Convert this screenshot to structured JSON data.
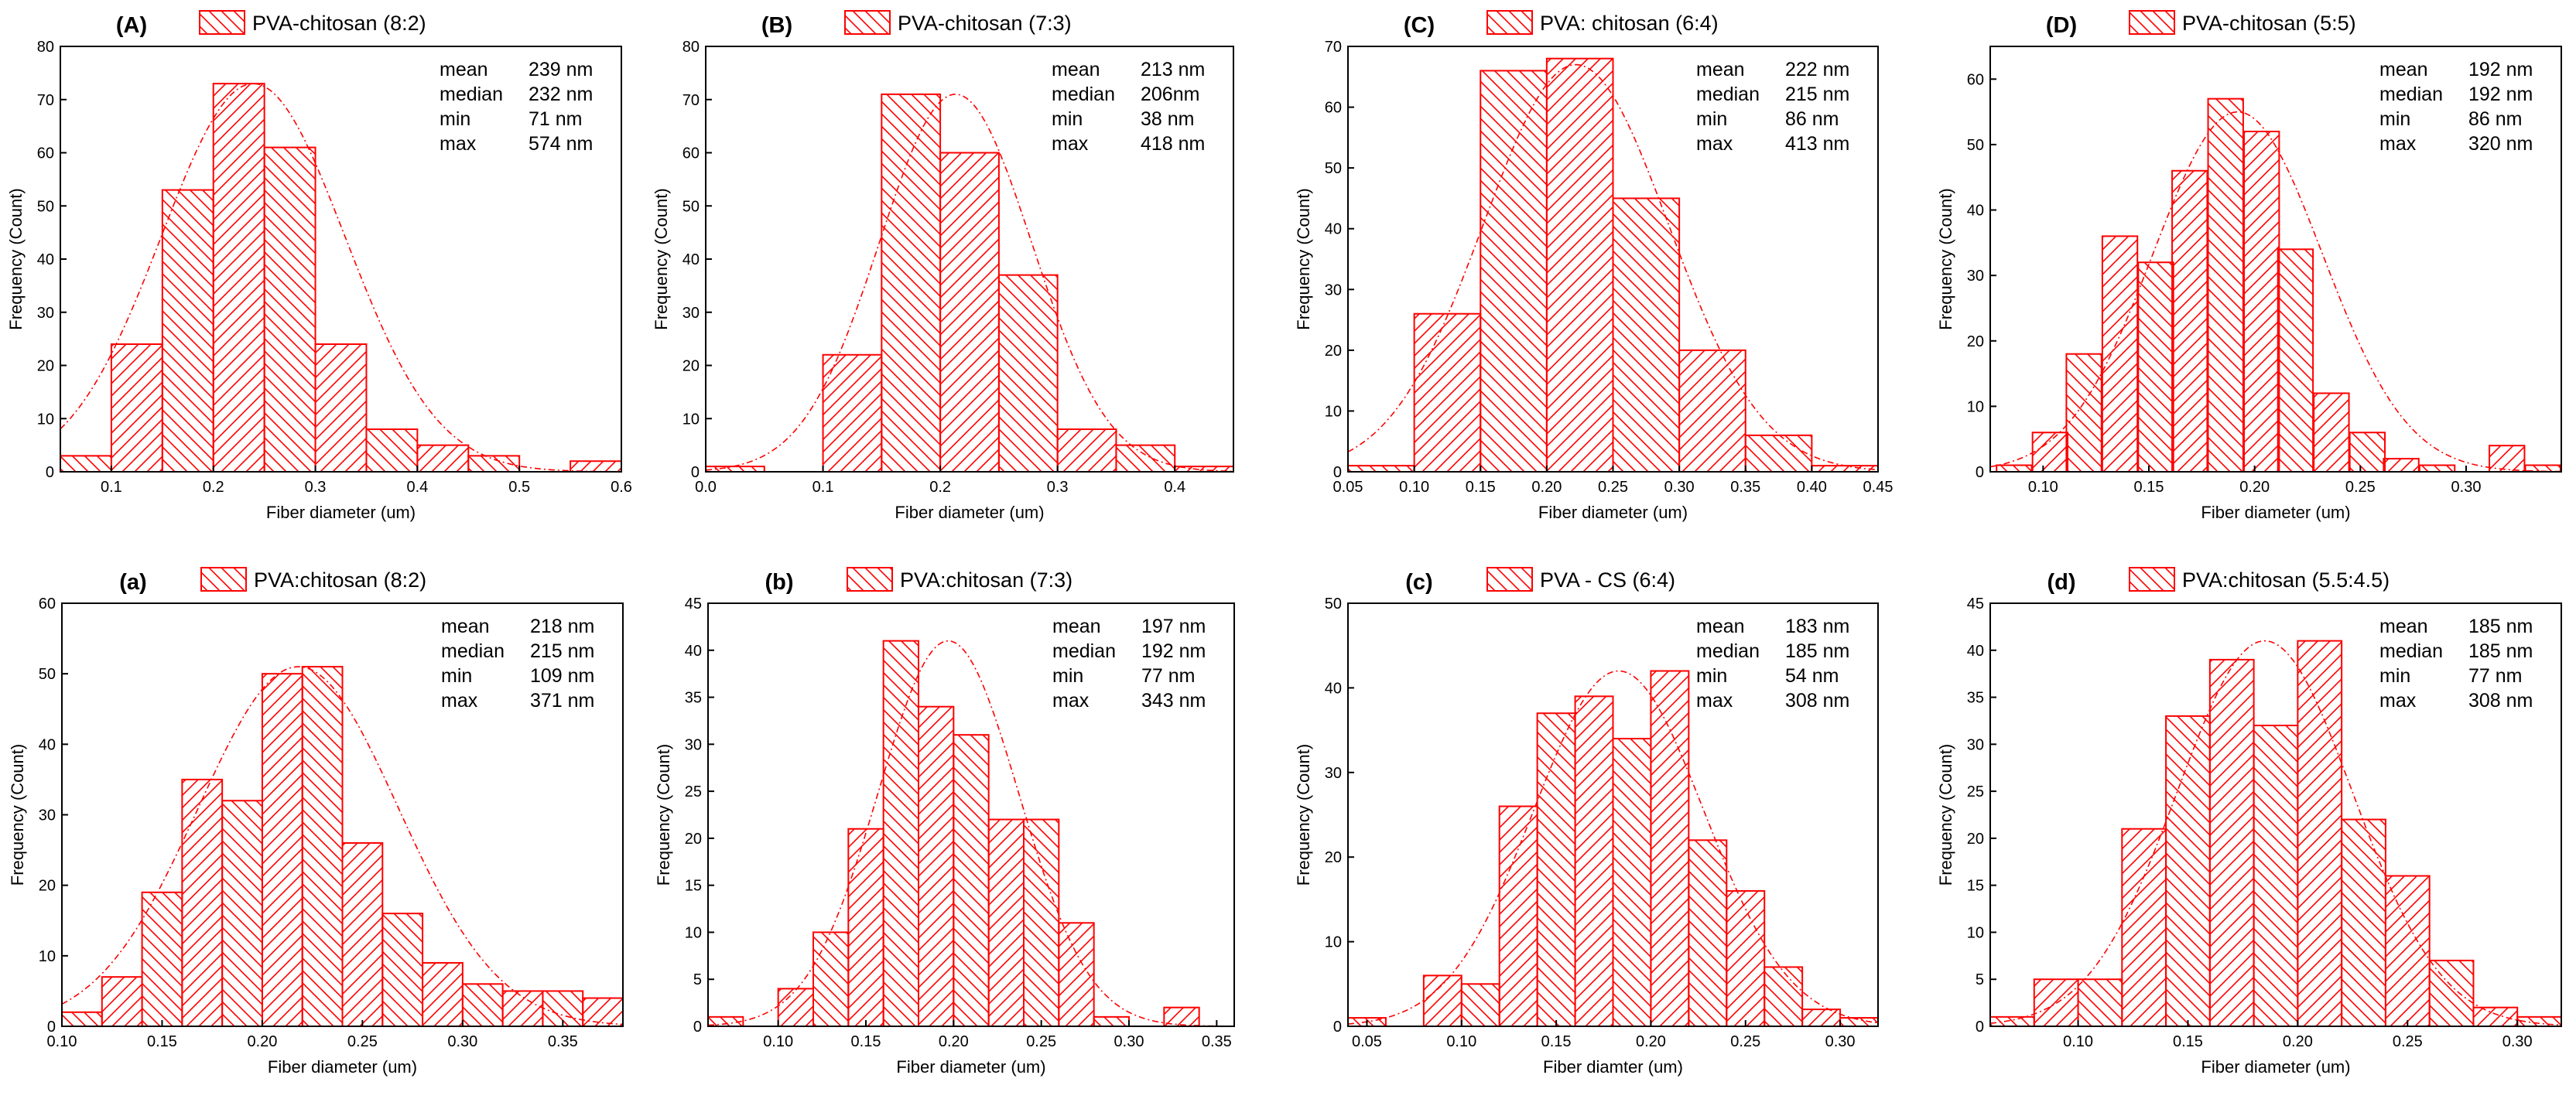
{
  "style": {
    "bar_color": "#ff0000"
  },
  "chart_data": [
    {
      "type": "bar",
      "panel_label": "(A)",
      "legend": "PVA-chitosan (8:2)",
      "xlabel": "Fiber diameter (um)",
      "ylabel": "Frequency (Count)",
      "xlim": [
        0.05,
        0.6
      ],
      "ylim": [
        0,
        80
      ],
      "xticks": [
        0.1,
        0.2,
        0.3,
        0.4,
        0.5,
        0.6
      ],
      "yticks": [
        0,
        10,
        20,
        30,
        40,
        50,
        60,
        70,
        80
      ],
      "bin_width": 0.05,
      "bin_starts": [
        0.05,
        0.1,
        0.15,
        0.2,
        0.25,
        0.3,
        0.35,
        0.4,
        0.45,
        0.55
      ],
      "values": [
        3,
        24,
        53,
        73,
        61,
        24,
        8,
        5,
        3,
        2
      ],
      "fit": {
        "mean": 0.239,
        "sd": 0.09,
        "peak": 73
      },
      "stats": [
        {
          "label": "mean",
          "value": "239 nm"
        },
        {
          "label": "median",
          "value": "232 nm"
        },
        {
          "label": "min",
          "value": "71  nm"
        },
        {
          "label": "max",
          "value": "574 nm"
        }
      ]
    },
    {
      "type": "bar",
      "panel_label": "(B)",
      "legend": "PVA-chitosan (7:3)",
      "xlabel": "Fiber diameter (um)",
      "ylabel": "Frequency (Count)",
      "xlim": [
        0.0,
        0.45
      ],
      "ylim": [
        0,
        80
      ],
      "xticks": [
        0.0,
        0.1,
        0.2,
        0.3,
        0.4
      ],
      "yticks": [
        0,
        10,
        20,
        30,
        40,
        50,
        60,
        70,
        80
      ],
      "bin_width": 0.05,
      "bin_starts": [
        0.0,
        0.1,
        0.15,
        0.2,
        0.25,
        0.3,
        0.35,
        0.4
      ],
      "values": [
        1,
        22,
        71,
        60,
        37,
        8,
        5,
        1
      ],
      "fit": {
        "mean": 0.213,
        "sd": 0.065,
        "peak": 71
      },
      "stats": [
        {
          "label": "mean",
          "value": "213 nm"
        },
        {
          "label": "median",
          "value": "206nm"
        },
        {
          "label": "min",
          "value": "38  nm"
        },
        {
          "label": "max",
          "value": "418 nm"
        }
      ]
    },
    {
      "type": "bar",
      "panel_label": "(C)",
      "legend": "PVA: chitosan (6:4)",
      "xlabel": "Fiber diameter (um)",
      "ylabel": "Frequency (Count)",
      "xlim": [
        0.05,
        0.45
      ],
      "ylim": [
        0,
        70
      ],
      "xticks": [
        0.05,
        0.1,
        0.15,
        0.2,
        0.25,
        0.3,
        0.35,
        0.4,
        0.45
      ],
      "yticks": [
        0,
        10,
        20,
        30,
        40,
        50,
        60,
        70
      ],
      "bin_width": 0.05,
      "bin_starts": [
        0.05,
        0.1,
        0.15,
        0.2,
        0.25,
        0.3,
        0.35,
        0.4
      ],
      "values": [
        1,
        26,
        66,
        68,
        45,
        20,
        6,
        1
      ],
      "fit": {
        "mean": 0.222,
        "sd": 0.07,
        "peak": 67
      },
      "stats": [
        {
          "label": "mean",
          "value": "222 nm"
        },
        {
          "label": "median",
          "value": "215 nm"
        },
        {
          "label": "min",
          "value": "86  nm"
        },
        {
          "label": "max",
          "value": "413 nm"
        }
      ]
    },
    {
      "type": "bar",
      "panel_label": "(D)",
      "legend": "PVA-chitosan (5:5)",
      "xlabel": "Fiber diameter (um)",
      "ylabel": "Frequency (Count)",
      "xlim": [
        0.075,
        0.345
      ],
      "ylim": [
        0,
        65
      ],
      "xticks": [
        0.1,
        0.15,
        0.2,
        0.25,
        0.3
      ],
      "yticks": [
        0,
        10,
        20,
        30,
        40,
        50,
        60
      ],
      "bin_width": 0.0166,
      "bin_starts": [
        0.078,
        0.095,
        0.111,
        0.128,
        0.145,
        0.161,
        0.178,
        0.195,
        0.211,
        0.228,
        0.245,
        0.261,
        0.278,
        0.311,
        0.328
      ],
      "values": [
        1,
        6,
        18,
        36,
        32,
        46,
        57,
        52,
        34,
        12,
        6,
        2,
        1,
        4,
        1
      ],
      "fit": {
        "mean": 0.192,
        "sd": 0.04,
        "peak": 55
      },
      "stats": [
        {
          "label": "mean",
          "value": "192 nm"
        },
        {
          "label": "median",
          "value": "192 nm"
        },
        {
          "label": "min",
          "value": "86  nm"
        },
        {
          "label": "max",
          "value": "320 nm"
        }
      ]
    },
    {
      "type": "bar",
      "panel_label": "(a)",
      "legend": "PVA:chitosan (8:2)",
      "xlabel": "Fiber diameter (um)",
      "ylabel": "Frequency (Count)",
      "xlim": [
        0.1,
        0.38
      ],
      "ylim": [
        0,
        60
      ],
      "xticks": [
        0.1,
        0.15,
        0.2,
        0.25,
        0.3,
        0.35
      ],
      "yticks": [
        0,
        10,
        20,
        30,
        40,
        50,
        60
      ],
      "bin_width": 0.02,
      "bin_starts": [
        0.1,
        0.12,
        0.14,
        0.16,
        0.18,
        0.2,
        0.22,
        0.24,
        0.26,
        0.28,
        0.3,
        0.32,
        0.34,
        0.36
      ],
      "values": [
        2,
        7,
        19,
        35,
        32,
        50,
        51,
        26,
        16,
        9,
        6,
        5,
        5,
        4
      ],
      "fit": {
        "mean": 0.218,
        "sd": 0.05,
        "peak": 51
      },
      "stats": [
        {
          "label": "mean",
          "value": "218 nm"
        },
        {
          "label": "median",
          "value": "215 nm"
        },
        {
          "label": "min",
          "value": "109 nm"
        },
        {
          "label": "max",
          "value": "371 nm"
        }
      ]
    },
    {
      "type": "bar",
      "panel_label": "(b)",
      "legend": "PVA:chitosan (7:3)",
      "xlabel": "Fiber diameter (um)",
      "ylabel": "Frequency (Count)",
      "xlim": [
        0.06,
        0.36
      ],
      "ylim": [
        0,
        45
      ],
      "xticks": [
        0.1,
        0.15,
        0.2,
        0.25,
        0.3,
        0.35
      ],
      "yticks": [
        0,
        5,
        10,
        15,
        20,
        25,
        30,
        35,
        40,
        45
      ],
      "bin_width": 0.02,
      "bin_starts": [
        0.06,
        0.1,
        0.12,
        0.14,
        0.16,
        0.18,
        0.2,
        0.22,
        0.24,
        0.26,
        0.28,
        0.32
      ],
      "values": [
        1,
        4,
        10,
        21,
        41,
        34,
        31,
        22,
        22,
        11,
        1,
        2
      ],
      "fit": {
        "mean": 0.197,
        "sd": 0.04,
        "peak": 41
      },
      "stats": [
        {
          "label": "mean",
          "value": "197 nm"
        },
        {
          "label": "median",
          "value": "192 nm"
        },
        {
          "label": "min",
          "value": "77 nm"
        },
        {
          "label": "max",
          "value": "343 nm"
        }
      ]
    },
    {
      "type": "bar",
      "panel_label": "(c)",
      "legend": "PVA - CS (6:4)",
      "xlabel": "Fiber diamter (um)",
      "ylabel": "Frequency (Count)",
      "xlim": [
        0.04,
        0.32
      ],
      "ylim": [
        0,
        50
      ],
      "xticks": [
        0.05,
        0.1,
        0.15,
        0.2,
        0.25,
        0.3
      ],
      "yticks": [
        0,
        10,
        20,
        30,
        40,
        50
      ],
      "bin_width": 0.02,
      "bin_starts": [
        0.04,
        0.08,
        0.1,
        0.12,
        0.14,
        0.16,
        0.18,
        0.2,
        0.22,
        0.24,
        0.26,
        0.28,
        0.3
      ],
      "values": [
        1,
        6,
        5,
        26,
        37,
        39,
        34,
        42,
        22,
        16,
        7,
        2,
        1
      ],
      "fit": {
        "mean": 0.183,
        "sd": 0.045,
        "peak": 42
      },
      "stats": [
        {
          "label": "mean",
          "value": "183 nm"
        },
        {
          "label": "median",
          "value": "185 nm"
        },
        {
          "label": "min",
          "value": "54  nm"
        },
        {
          "label": "max",
          "value": "308 nm"
        }
      ]
    },
    {
      "type": "bar",
      "panel_label": "(d)",
      "legend": "PVA:chitosan (5.5:4.5)",
      "xlabel": "Fiber diameter (um)",
      "ylabel": "Frequency (Count)",
      "xlim": [
        0.06,
        0.32
      ],
      "ylim": [
        0,
        45
      ],
      "xticks": [
        0.1,
        0.15,
        0.2,
        0.25,
        0.3
      ],
      "yticks": [
        0,
        5,
        10,
        15,
        20,
        25,
        30,
        35,
        40,
        45
      ],
      "bin_width": 0.02,
      "bin_starts": [
        0.06,
        0.08,
        0.1,
        0.12,
        0.14,
        0.16,
        0.18,
        0.2,
        0.22,
        0.24,
        0.26,
        0.28,
        0.3
      ],
      "values": [
        1,
        5,
        5,
        21,
        33,
        39,
        32,
        41,
        22,
        16,
        7,
        2,
        1
      ],
      "fit": {
        "mean": 0.185,
        "sd": 0.04,
        "peak": 41
      },
      "stats": [
        {
          "label": "mean",
          "value": "185 nm"
        },
        {
          "label": "median",
          "value": "185 nm"
        },
        {
          "label": "min",
          "value": "77 nm"
        },
        {
          "label": "max",
          "value": "308 nm"
        }
      ]
    }
  ]
}
